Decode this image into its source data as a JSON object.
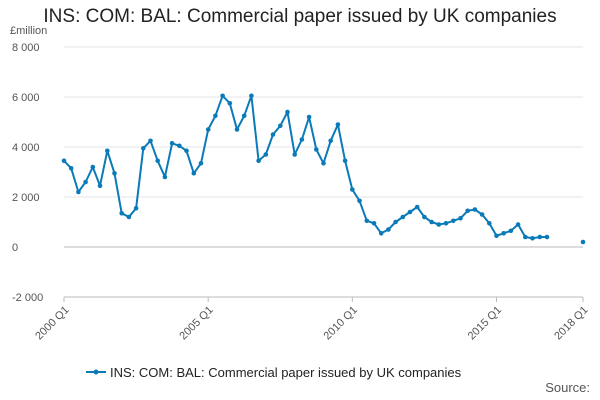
{
  "chart_data": {
    "type": "line",
    "title": "INS: COM: BAL: Commercial paper issued by UK companies",
    "ylabel": "£million",
    "xlabel": "",
    "ylim": [
      -2000,
      8000
    ],
    "yticks": [
      -2000,
      0,
      2000,
      4000,
      6000,
      8000
    ],
    "yticklabels": [
      "-2 000",
      "0",
      "2 000",
      "4 000",
      "6 000",
      "8 000"
    ],
    "xticks": [
      "2000 Q1",
      "2005 Q1",
      "2010 Q1",
      "2015 Q1",
      "2018 Q1"
    ],
    "grid": "horizontal",
    "legend_position": "bottom",
    "color": "#0a7ab8",
    "series": [
      {
        "name": "INS: COM: BAL: Commercial paper issued by UK companies",
        "x": [
          "2000 Q1",
          "2000 Q2",
          "2000 Q3",
          "2000 Q4",
          "2001 Q1",
          "2001 Q2",
          "2001 Q3",
          "2001 Q4",
          "2002 Q1",
          "2002 Q2",
          "2002 Q3",
          "2002 Q4",
          "2003 Q1",
          "2003 Q2",
          "2003 Q3",
          "2003 Q4",
          "2004 Q1",
          "2004 Q2",
          "2004 Q3",
          "2004 Q4",
          "2005 Q1",
          "2005 Q2",
          "2005 Q3",
          "2005 Q4",
          "2006 Q1",
          "2006 Q2",
          "2006 Q3",
          "2006 Q4",
          "2007 Q1",
          "2007 Q2",
          "2007 Q3",
          "2007 Q4",
          "2008 Q1",
          "2008 Q2",
          "2008 Q3",
          "2008 Q4",
          "2009 Q1",
          "2009 Q2",
          "2009 Q3",
          "2009 Q4",
          "2010 Q1",
          "2010 Q2",
          "2010 Q3",
          "2010 Q4",
          "2011 Q1",
          "2011 Q2",
          "2011 Q3",
          "2011 Q4",
          "2012 Q1",
          "2012 Q2",
          "2012 Q3",
          "2012 Q4",
          "2013 Q1",
          "2013 Q2",
          "2013 Q3",
          "2013 Q4",
          "2014 Q1",
          "2014 Q2",
          "2014 Q3",
          "2014 Q4",
          "2015 Q1",
          "2015 Q2",
          "2015 Q3",
          "2015 Q4",
          "2016 Q1",
          "2016 Q2",
          "2016 Q3",
          "2016 Q4",
          "2017 Q1",
          "2017 Q2",
          "2017 Q3",
          "2017 Q4",
          "2018 Q1"
        ],
        "values": [
          3450,
          3150,
          2200,
          2600,
          3200,
          2450,
          3850,
          2950,
          1350,
          1200,
          1550,
          3950,
          4250,
          3450,
          2800,
          4150,
          4050,
          3850,
          2950,
          3350,
          4700,
          5250,
          6050,
          5750,
          4700,
          5250,
          6050,
          3450,
          3700,
          4500,
          4850,
          5400,
          3700,
          4300,
          5200,
          3900,
          3350,
          4250,
          4900,
          3450,
          2300,
          1850,
          1050,
          950,
          550,
          700,
          1000,
          1200,
          1400,
          1600,
          1200,
          1000,
          900,
          950,
          1050,
          1150,
          1450,
          1500,
          1300,
          950,
          450,
          550,
          650,
          900,
          400,
          350,
          400,
          400,
          null,
          null,
          null,
          null,
          200
        ]
      }
    ]
  },
  "legend": {
    "label": "INS: COM: BAL: Commercial paper issued by UK companies"
  },
  "source_label": "Source:"
}
